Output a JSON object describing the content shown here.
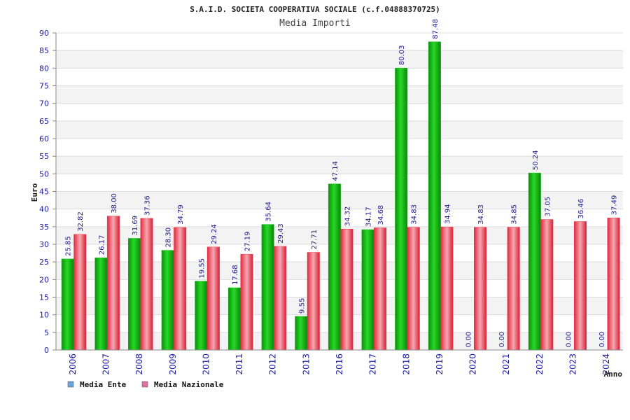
{
  "chart_data": {
    "type": "bar",
    "title": "S.A.I.D. SOCIETA COOPERATIVA SOCIALE (c.f.04888370725)",
    "subtitle": "Media Importi",
    "xlabel": "Anno",
    "ylabel": "Euro",
    "ylim": [
      0,
      90
    ],
    "ytick_step": 5,
    "grid": true,
    "legend_position": "bottom-left",
    "categories": [
      "2006",
      "2007",
      "2008",
      "2009",
      "2010",
      "2011",
      "2012",
      "2013",
      "2016",
      "2017",
      "2018",
      "2019",
      "2020",
      "2021",
      "2022",
      "2023",
      "2024"
    ],
    "series": [
      {
        "name": "Media Ente",
        "values": [
          25.85,
          26.17,
          31.69,
          28.3,
          19.55,
          17.68,
          35.64,
          9.55,
          47.14,
          34.17,
          80.03,
          87.48,
          0.0,
          0.0,
          50.24,
          0.0,
          0.0
        ],
        "labels": [
          "25.85",
          "26.17",
          "31.69",
          "28.30",
          "19.55",
          "17.68",
          "35.64",
          "9.55",
          "47.14",
          "34.17",
          "80.03",
          "87.48",
          "0.00",
          "0.00",
          "50.24",
          "0.00",
          "0.00"
        ],
        "color": "#1fb81f",
        "legend_color": "#66a3e0"
      },
      {
        "name": "Media Nazionale",
        "values": [
          32.82,
          38.0,
          37.36,
          34.79,
          29.24,
          27.19,
          29.43,
          27.71,
          34.32,
          34.68,
          34.83,
          34.94,
          34.83,
          34.85,
          37.05,
          36.46,
          37.49
        ],
        "labels": [
          "32.82",
          "38.00",
          "37.36",
          "34.79",
          "29.24",
          "27.19",
          "29.43",
          "27.71",
          "34.32",
          "34.68",
          "34.83",
          "34.94",
          "34.83",
          "34.85",
          "37.05",
          "36.46",
          "37.49"
        ],
        "color": "#e8364a",
        "legend_color": "#e070a8"
      }
    ]
  }
}
